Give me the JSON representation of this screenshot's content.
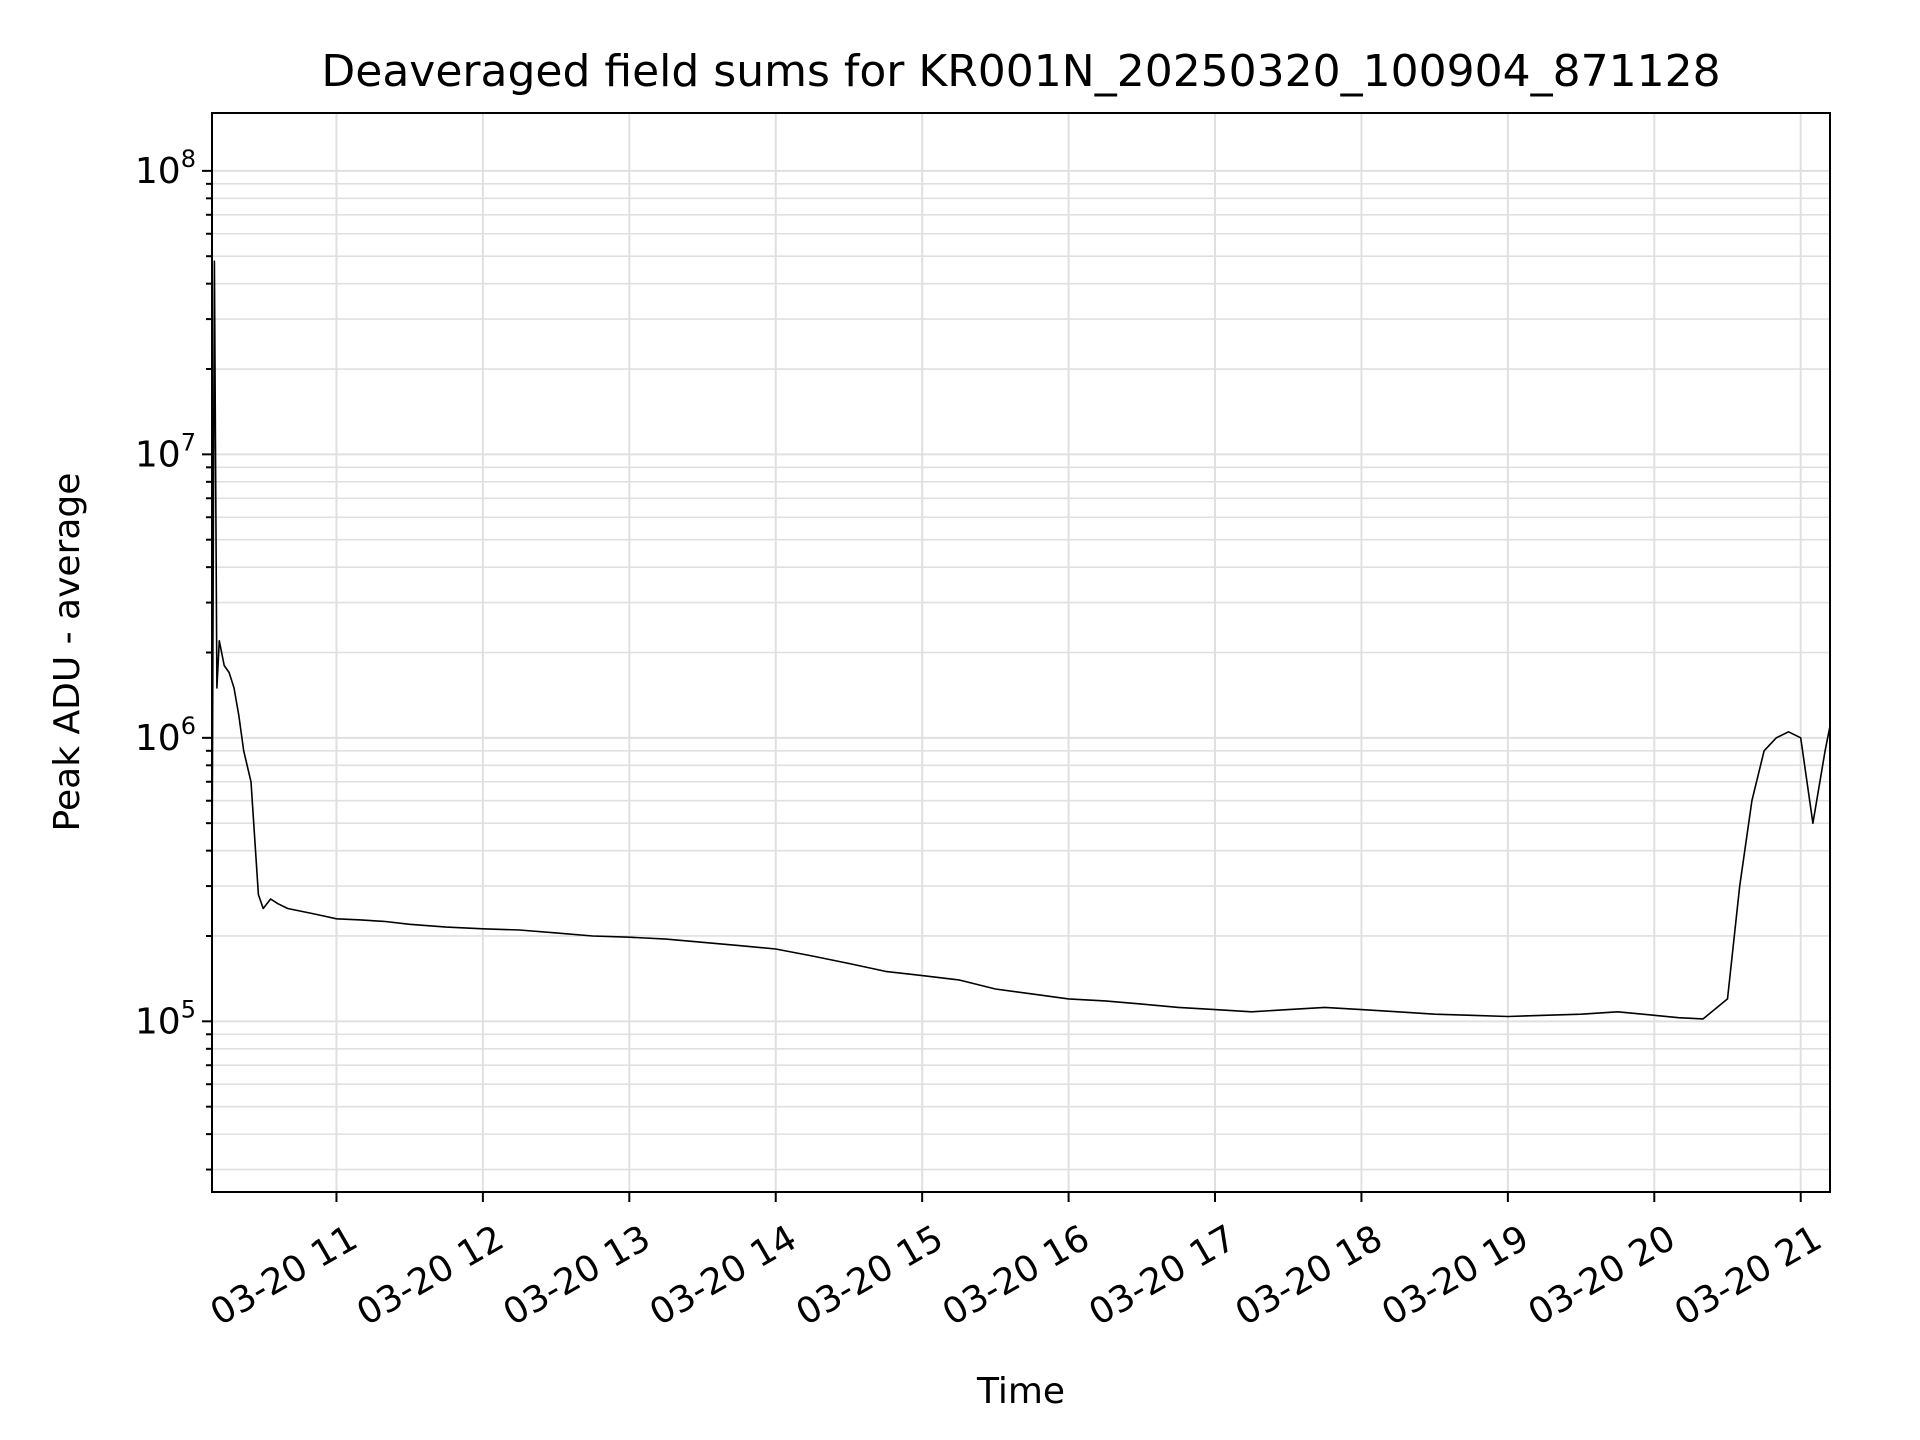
{
  "chart_data": {
    "type": "line",
    "title": "Deaveraged field sums for KR001N_20250320_100904_871128",
    "xlabel": "Time",
    "ylabel": "Peak ADU - average",
    "yscale": "log",
    "xlim": [
      "03-20 10:09",
      "03-20 21:12"
    ],
    "ylim": [
      25000,
      160000000
    ],
    "grid": true,
    "line_color": "#000000",
    "grid_color": "#e0e0e0",
    "x_ticks": [
      {
        "label": "03-20 11",
        "value": "03-20 11:00"
      },
      {
        "label": "03-20 12",
        "value": "03-20 12:00"
      },
      {
        "label": "03-20 13",
        "value": "03-20 13:00"
      },
      {
        "label": "03-20 14",
        "value": "03-20 14:00"
      },
      {
        "label": "03-20 15",
        "value": "03-20 15:00"
      },
      {
        "label": "03-20 16",
        "value": "03-20 16:00"
      },
      {
        "label": "03-20 17",
        "value": "03-20 17:00"
      },
      {
        "label": "03-20 18",
        "value": "03-20 18:00"
      },
      {
        "label": "03-20 19",
        "value": "03-20 19:00"
      },
      {
        "label": "03-20 20",
        "value": "03-20 20:00"
      },
      {
        "label": "03-20 21",
        "value": "03-20 21:00"
      }
    ],
    "y_ticks": [
      {
        "base": "10",
        "exp": "5",
        "value": 100000
      },
      {
        "base": "10",
        "exp": "6",
        "value": 1000000
      },
      {
        "base": "10",
        "exp": "7",
        "value": 10000000
      },
      {
        "base": "10",
        "exp": "8",
        "value": 100000000
      }
    ],
    "series": [
      {
        "x": [
          "03-20 10:09",
          "03-20 10:10",
          "03-20 10:11",
          "03-20 10:12",
          "03-20 10:14",
          "03-20 10:16",
          "03-20 10:18",
          "03-20 10:20",
          "03-20 10:22",
          "03-20 10:25",
          "03-20 10:28",
          "03-20 10:30",
          "03-20 10:33",
          "03-20 10:36",
          "03-20 10:40",
          "03-20 10:45",
          "03-20 10:50",
          "03-20 10:55",
          "03-20 11:00",
          "03-20 11:10",
          "03-20 11:20",
          "03-20 11:30",
          "03-20 11:45",
          "03-20 12:00",
          "03-20 12:15",
          "03-20 12:30",
          "03-20 12:45",
          "03-20 13:00",
          "03-20 13:15",
          "03-20 13:30",
          "03-20 13:45",
          "03-20 14:00",
          "03-20 14:15",
          "03-20 14:30",
          "03-20 14:45",
          "03-20 15:00",
          "03-20 15:15",
          "03-20 15:30",
          "03-20 15:45",
          "03-20 16:00",
          "03-20 16:15",
          "03-20 16:30",
          "03-20 16:45",
          "03-20 17:00",
          "03-20 17:15",
          "03-20 17:30",
          "03-20 17:45",
          "03-20 18:00",
          "03-20 18:15",
          "03-20 18:30",
          "03-20 18:45",
          "03-20 19:00",
          "03-20 19:15",
          "03-20 19:30",
          "03-20 19:45",
          "03-20 20:00",
          "03-20 20:10",
          "03-20 20:20",
          "03-20 20:30",
          "03-20 20:35",
          "03-20 20:40",
          "03-20 20:45",
          "03-20 20:50",
          "03-20 20:55",
          "03-20 21:00",
          "03-20 21:05",
          "03-20 21:10",
          "03-20 21:12"
        ],
        "y": [
          300000,
          48000000,
          1500000,
          2200000,
          1800000,
          1700000,
          1500000,
          1200000,
          900000,
          700000,
          280000,
          250000,
          270000,
          260000,
          250000,
          245000,
          240000,
          235000,
          230000,
          228000,
          225000,
          220000,
          215000,
          212000,
          210000,
          205000,
          200000,
          198000,
          195000,
          190000,
          185000,
          180000,
          170000,
          160000,
          150000,
          145000,
          140000,
          130000,
          125000,
          120000,
          118000,
          115000,
          112000,
          110000,
          108000,
          110000,
          112000,
          110000,
          108000,
          106000,
          105000,
          104000,
          105000,
          106000,
          108000,
          105000,
          103000,
          102000,
          120000,
          300000,
          600000,
          900000,
          1000000,
          1050000,
          1000000,
          500000,
          900000,
          1100000
        ]
      }
    ]
  }
}
